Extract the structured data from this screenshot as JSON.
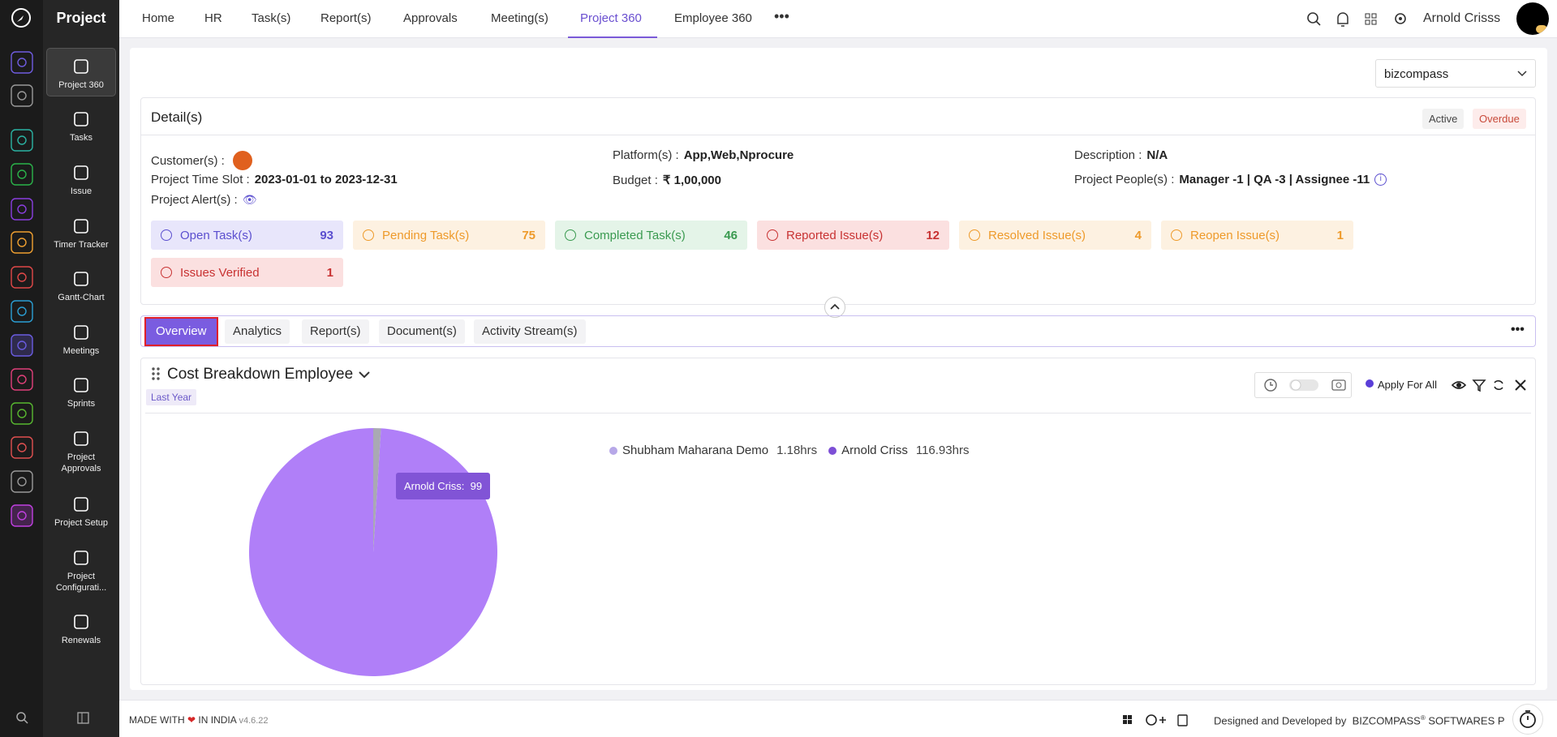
{
  "sidebar": {
    "title": "Project",
    "items": [
      "Project 360",
      "Tasks",
      "Issue",
      "Timer Tracker",
      "Gantt-Chart",
      "Meetings",
      "Sprints",
      "Project Approvals",
      "Project Setup",
      "Project Configurati...",
      "Renewals"
    ]
  },
  "topnav": {
    "items": [
      "Home",
      "HR",
      "Task(s)",
      "Report(s)",
      "Approvals",
      "Meeting(s)",
      "Project 360",
      "Employee 360"
    ],
    "user": "Arnold Crisss"
  },
  "project_select": "bizcompass",
  "details": {
    "title": "Detail(s)",
    "badges": [
      "Active",
      "Overdue"
    ],
    "fields": [
      {
        "label": "Customer(s) :"
      },
      {
        "label": "Platform(s) :",
        "value": "App,Web,Nprocure"
      },
      {
        "label": "Description :",
        "value": "N/A"
      },
      {
        "label": "Project Time Slot :",
        "value": "2023-01-01 to 2023-12-31"
      },
      {
        "label": "Budget :",
        "value": "₹ 1,00,000"
      },
      {
        "label": "Project People(s) :",
        "value": "Manager -1 | QA -3 | Assignee -11"
      },
      {
        "label": "Project Alert(s) :"
      }
    ],
    "stats": [
      {
        "label": "Open Task(s)",
        "value": 93
      },
      {
        "label": "Pending Task(s)",
        "value": 75
      },
      {
        "label": "Completed Task(s)",
        "value": 46
      },
      {
        "label": "Reported Issue(s)",
        "value": 12
      },
      {
        "label": "Resolved Issue(s)",
        "value": 4
      },
      {
        "label": "Reopen Issue(s)",
        "value": 1
      },
      {
        "label": "Issues Verified",
        "value": 1
      }
    ]
  },
  "tabs": [
    "Overview",
    "Analytics",
    "Report(s)",
    "Document(s)",
    "Activity Stream(s)"
  ],
  "widget": {
    "title": "Cost Breakdown Employee",
    "period": "Last Year",
    "apply_label": "Apply For All",
    "tooltip": {
      "label": "Arnold Criss:",
      "value": 99
    },
    "series": [
      {
        "name": "Shubham Maharana Demo",
        "value": 1.18,
        "value_label": "1.18hrs",
        "color": "#a9a9b3"
      },
      {
        "name": "Arnold Criss",
        "value": 116.93,
        "value_label": "116.93hrs",
        "color": "#b07ff8"
      }
    ]
  },
  "footer": {
    "made": "MADE WITH",
    "india": "IN INDIA",
    "version": "v4.6.22",
    "credit": "Designed and Developed by",
    "company": "BIZCOMPASS",
    "reg": "®",
    "company_rest": "SOFTWARES P"
  }
}
